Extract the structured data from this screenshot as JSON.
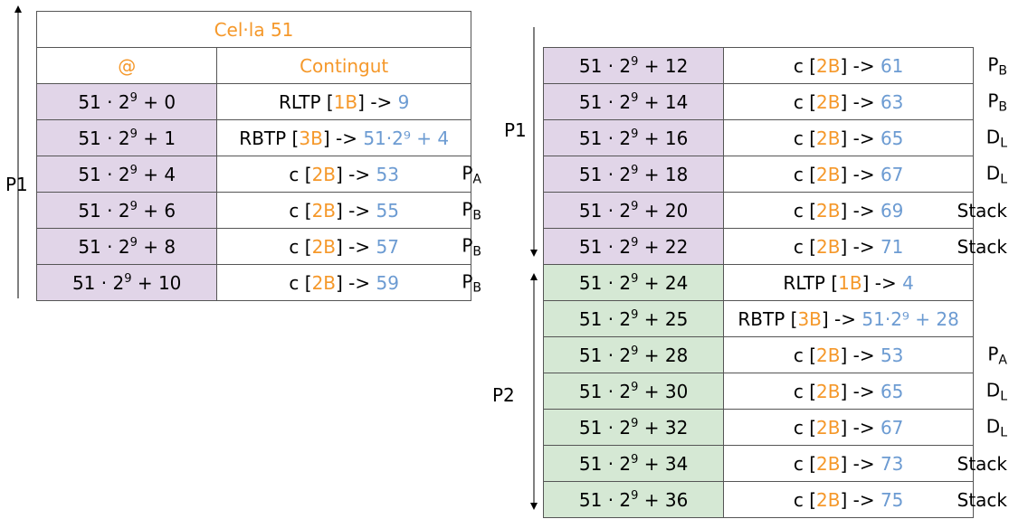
{
  "left": {
    "title": "Cel·la 51",
    "col_addr": "@",
    "col_content": "Contingut",
    "range_label": "P1",
    "rows": [
      {
        "addr": "0",
        "instr": "RLTP",
        "size": "1B",
        "value": "9",
        "tag": "",
        "tag_sub": ""
      },
      {
        "addr": "1",
        "instr": "RBTP",
        "size": "3B",
        "value": "51·2⁹ + 4",
        "tag": "",
        "tag_sub": ""
      },
      {
        "addr": "4",
        "instr": "c",
        "size": "2B",
        "value": "53",
        "tag": "P",
        "tag_sub": "A"
      },
      {
        "addr": "6",
        "instr": "c",
        "size": "2B",
        "value": "55",
        "tag": "P",
        "tag_sub": "B"
      },
      {
        "addr": "8",
        "instr": "c",
        "size": "2B",
        "value": "57",
        "tag": "P",
        "tag_sub": "B"
      },
      {
        "addr": "10",
        "instr": "c",
        "size": "2B",
        "value": "59",
        "tag": "P",
        "tag_sub": "B"
      }
    ]
  },
  "right": {
    "label_p1": "P1",
    "label_p2": "P2",
    "rows": [
      {
        "addr": "12",
        "instr": "c",
        "size": "2B",
        "value": "61",
        "tag": "P",
        "tag_sub": "B",
        "group": "p1"
      },
      {
        "addr": "14",
        "instr": "c",
        "size": "2B",
        "value": "63",
        "tag": "P",
        "tag_sub": "B",
        "group": "p1"
      },
      {
        "addr": "16",
        "instr": "c",
        "size": "2B",
        "value": "65",
        "tag": "D",
        "tag_sub": "L",
        "group": "p1"
      },
      {
        "addr": "18",
        "instr": "c",
        "size": "2B",
        "value": "67",
        "tag": "D",
        "tag_sub": "L",
        "group": "p1"
      },
      {
        "addr": "20",
        "instr": "c",
        "size": "2B",
        "value": "69",
        "tag": "Stack",
        "tag_sub": "",
        "group": "p1"
      },
      {
        "addr": "22",
        "instr": "c",
        "size": "2B",
        "value": "71",
        "tag": "Stack",
        "tag_sub": "",
        "group": "p1"
      },
      {
        "addr": "24",
        "instr": "RLTP",
        "size": "1B",
        "value": "4",
        "tag": "",
        "tag_sub": "",
        "group": "p2"
      },
      {
        "addr": "25",
        "instr": "RBTP",
        "size": "3B",
        "value": "51·2⁹ + 28",
        "tag": "",
        "tag_sub": "",
        "group": "p2"
      },
      {
        "addr": "28",
        "instr": "c",
        "size": "2B",
        "value": "53",
        "tag": "P",
        "tag_sub": "A",
        "group": "p2"
      },
      {
        "addr": "30",
        "instr": "c",
        "size": "2B",
        "value": "65",
        "tag": "D",
        "tag_sub": "L",
        "group": "p2"
      },
      {
        "addr": "32",
        "instr": "c",
        "size": "2B",
        "value": "67",
        "tag": "D",
        "tag_sub": "L",
        "group": "p2"
      },
      {
        "addr": "34",
        "instr": "c",
        "size": "2B",
        "value": "73",
        "tag": "Stack",
        "tag_sub": "",
        "group": "p2"
      },
      {
        "addr": "36",
        "instr": "c",
        "size": "2B",
        "value": "75",
        "tag": "Stack",
        "tag_sub": "",
        "group": "p2"
      }
    ]
  },
  "address_base": "51 · 2",
  "address_exp": "9",
  "arrow_sep": " -> ",
  "colors": {
    "orange": "#f5982a",
    "blue": "#6c9bd2",
    "purple": "#e1d5e8",
    "green": "#d5e8d4"
  }
}
